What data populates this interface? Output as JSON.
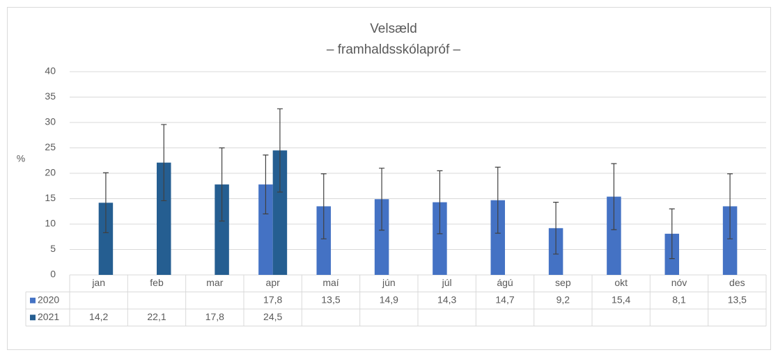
{
  "chart_data": {
    "type": "bar",
    "title": "Velsæld",
    "subtitle": "– framhaldsskólapróf –",
    "ylabel": "%",
    "categories": [
      "jan",
      "feb",
      "mar",
      "apr",
      "maí",
      "jún",
      "júl",
      "ágú",
      "sep",
      "okt",
      "nóv",
      "des"
    ],
    "series": [
      {
        "name": "2020",
        "color": "#4472c4",
        "values": [
          null,
          null,
          null,
          17.8,
          13.5,
          14.9,
          14.3,
          14.7,
          9.2,
          15.4,
          8.1,
          13.5
        ],
        "value_labels": [
          null,
          null,
          null,
          "17,8",
          "13,5",
          "14,9",
          "14,3",
          "14,7",
          "9,2",
          "15,4",
          "8,1",
          "13,5"
        ],
        "errors": [
          null,
          null,
          null,
          5.8,
          6.4,
          6.1,
          6.2,
          6.5,
          5.1,
          6.5,
          4.9,
          6.4
        ]
      },
      {
        "name": "2021",
        "color": "#255e91",
        "values": [
          14.2,
          22.1,
          17.8,
          24.5,
          null,
          null,
          null,
          null,
          null,
          null,
          null,
          null
        ],
        "value_labels": [
          "14,2",
          "22,1",
          "17,8",
          "24,5",
          null,
          null,
          null,
          null,
          null,
          null,
          null,
          null
        ],
        "errors": [
          5.9,
          7.5,
          7.2,
          8.2,
          null,
          null,
          null,
          null,
          null,
          null,
          null,
          null
        ]
      }
    ],
    "ylim": [
      0,
      40
    ],
    "yticks": [
      0,
      5,
      10,
      15,
      20,
      25,
      30,
      35,
      40
    ],
    "grid": true
  }
}
